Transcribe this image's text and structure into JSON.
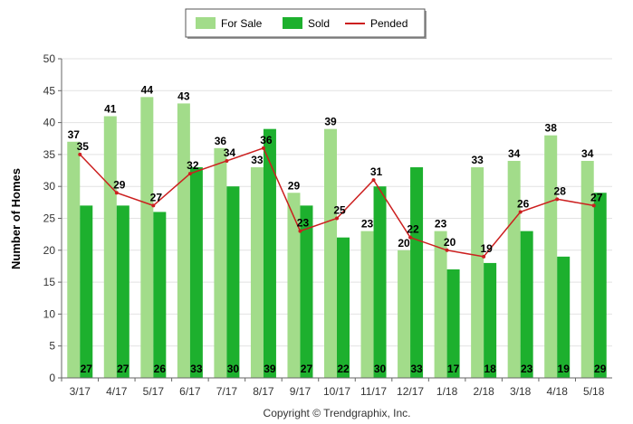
{
  "chart_data": {
    "type": "bar",
    "categories": [
      "3/17",
      "4/17",
      "5/17",
      "6/17",
      "7/17",
      "8/17",
      "9/17",
      "10/17",
      "11/17",
      "12/17",
      "1/18",
      "2/18",
      "3/18",
      "4/18",
      "5/18"
    ],
    "series": [
      {
        "name": "For Sale",
        "type": "bar",
        "color": "#a2dc8a",
        "values": [
          37,
          41,
          44,
          43,
          36,
          33,
          29,
          39,
          23,
          20,
          23,
          33,
          34,
          38,
          34
        ]
      },
      {
        "name": "Sold",
        "type": "bar",
        "color": "#1db02e",
        "values": [
          27,
          27,
          26,
          33,
          30,
          39,
          27,
          22,
          30,
          33,
          17,
          18,
          23,
          19,
          29
        ]
      },
      {
        "name": "Pended",
        "type": "line",
        "color": "#cc1f1f",
        "values": [
          35,
          29,
          27,
          32,
          34,
          36,
          23,
          25,
          31,
          22,
          20,
          19,
          26,
          28,
          27
        ]
      }
    ],
    "ylabel": "Number of Homes",
    "ylim": [
      0,
      50
    ],
    "yticks": [
      0,
      5,
      10,
      15,
      20,
      25,
      30,
      35,
      40,
      45,
      50
    ],
    "grid": true,
    "legend": "top-center",
    "copyright": "Copyright © Trendgraphix, Inc."
  }
}
